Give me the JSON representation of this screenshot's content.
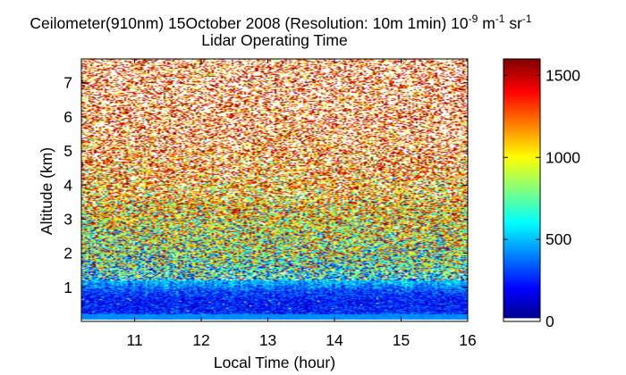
{
  "chart_data": {
    "type": "heatmap",
    "title": {
      "main": "Ceilometer(910nm) 15October 2008 (Resolution: 10m 1min) 10",
      "exp1": "-9",
      "mid": " m",
      "exp2": "-1",
      "tail": " sr",
      "exp3": "-1",
      "subtitle": "Lidar Operating Time"
    },
    "xlabel": "Local Time (hour)",
    "ylabel": "Altitude (km)",
    "xlim": [
      10.2,
      16.0
    ],
    "ylim": [
      0,
      7.7
    ],
    "xticks": [
      {
        "value": 11,
        "label": "11"
      },
      {
        "value": 12,
        "label": "12"
      },
      {
        "value": 13,
        "label": "13"
      },
      {
        "value": 14,
        "label": "14"
      },
      {
        "value": 15,
        "label": "15"
      },
      {
        "value": 16,
        "label": "16"
      }
    ],
    "yticks": [
      {
        "value": 1,
        "label": "1"
      },
      {
        "value": 2,
        "label": "2"
      },
      {
        "value": 3,
        "label": "3"
      },
      {
        "value": 4,
        "label": "4"
      },
      {
        "value": 5,
        "label": "5"
      },
      {
        "value": 6,
        "label": "6"
      },
      {
        "value": 7,
        "label": "7"
      }
    ],
    "colorbar": {
      "range": [
        0,
        1600
      ],
      "colormap": "jet",
      "ticks": [
        {
          "value": 0,
          "label": "0"
        },
        {
          "value": 500,
          "label": "500"
        },
        {
          "value": 1000,
          "label": "1000"
        },
        {
          "value": 1500,
          "label": "1500"
        }
      ]
    },
    "signal_profile": {
      "description": "Noisy backscatter; low values near ground, saturating aloft",
      "altitude_km": [
        0.0,
        0.3,
        0.6,
        0.9,
        1.2,
        1.6,
        2.0,
        2.5,
        3.0,
        3.5,
        4.0,
        5.0,
        6.0,
        7.7
      ],
      "typical_value": [
        420,
        250,
        230,
        320,
        520,
        700,
        850,
        950,
        1050,
        1150,
        1250,
        1450,
        1550,
        1600
      ]
    },
    "colors": {
      "axis": "#000000",
      "background": "#ffffff"
    }
  }
}
